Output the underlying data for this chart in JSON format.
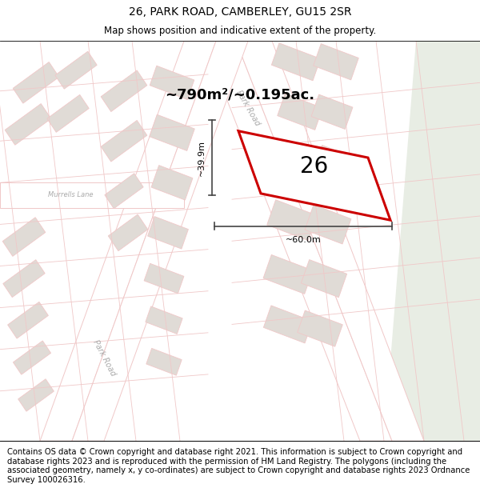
{
  "title": "26, PARK ROAD, CAMBERLEY, GU15 2SR",
  "subtitle": "Map shows position and indicative extent of the property.",
  "area_text": "~790m²/~0.195ac.",
  "property_number": "26",
  "dim_width": "~60.0m",
  "dim_height": "~39.9m",
  "footer_text": "Contains OS data © Crown copyright and database right 2021. This information is subject to Crown copyright and database rights 2023 and is reproduced with the permission of HM Land Registry. The polygons (including the associated geometry, namely x, y co-ordinates) are subject to Crown copyright and database rights 2023 Ordnance Survey 100026316.",
  "bg_color": "#ffffff",
  "map_bg": "#f7f5f2",
  "road_color": "#f0c8c8",
  "building_color": "#e0dbd6",
  "property_fill": "#ffffff",
  "property_border": "#cc0000",
  "green_area": "#e8ede4",
  "title_fontsize": 10,
  "subtitle_fontsize": 8.5,
  "footer_fontsize": 7.2,
  "road_label_color": "#aaaaaa",
  "road_label_size": 7
}
